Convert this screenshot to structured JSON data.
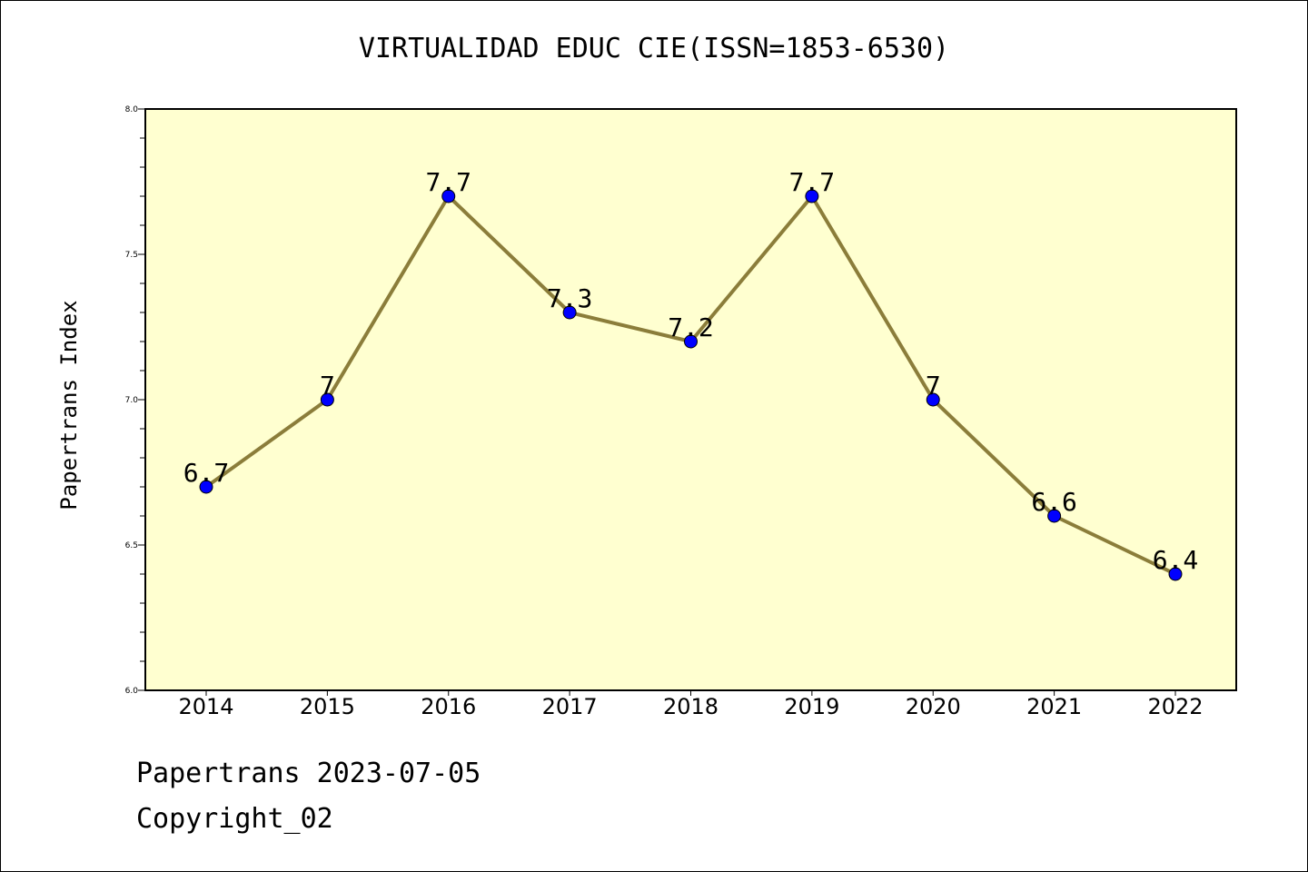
{
  "title": "VIRTUALIDAD EDUC CIE(ISSN=1853-6530)",
  "footer": {
    "date_text": "Papertrans 2023-07-05",
    "copyright_text": "Copyright_02"
  },
  "colors": {
    "plot_background": "#ffffd0",
    "line": "#8b7d3a",
    "marker": "#0000ff"
  },
  "chart_data": {
    "type": "line",
    "title": "VIRTUALIDAD EDUC CIE(ISSN=1853-6530)",
    "xlabel": "",
    "ylabel": "Papertrans Index",
    "categories": [
      "2014",
      "2015",
      "2016",
      "2017",
      "2018",
      "2019",
      "2020",
      "2021",
      "2022"
    ],
    "series": [
      {
        "values": [
          6.7,
          7.0,
          7.7,
          7.3,
          7.2,
          7.7,
          7.0,
          6.6,
          6.4
        ]
      }
    ],
    "data_labels": [
      "6.7",
      "7",
      "7.7",
      "7.3",
      "7.2",
      "7.7",
      "7",
      "6.6",
      "6.4"
    ],
    "ylim": [
      6.0,
      8.0
    ],
    "yticks": [
      "6.0",
      "6.5",
      "7.0",
      "7.5",
      "8.0"
    ],
    "grid": false,
    "legend": "none"
  }
}
